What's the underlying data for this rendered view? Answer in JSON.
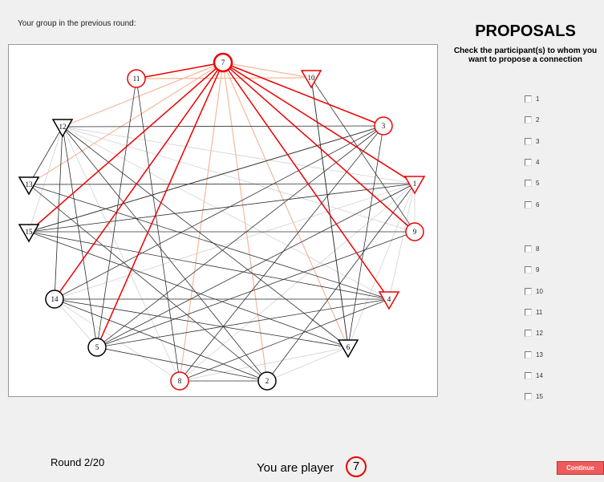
{
  "header": "Your group in the previous round:",
  "title": "PROPOSALS",
  "instruction": "Check the participant(s) to whom you want to propose a connection",
  "nodes": [
    "7",
    "11",
    "10",
    "12",
    "3",
    "13",
    "1",
    "15",
    "9",
    "14",
    "4",
    "5",
    "6",
    "8",
    "2"
  ],
  "checkboxes": [
    "1",
    "2",
    "3",
    "4",
    "5",
    "6",
    "8",
    "9",
    "10",
    "11",
    "12",
    "13",
    "14",
    "15"
  ],
  "round": "Round 2/20",
  "player_text": "You are player",
  "player_number": "7",
  "button": "Continue"
}
